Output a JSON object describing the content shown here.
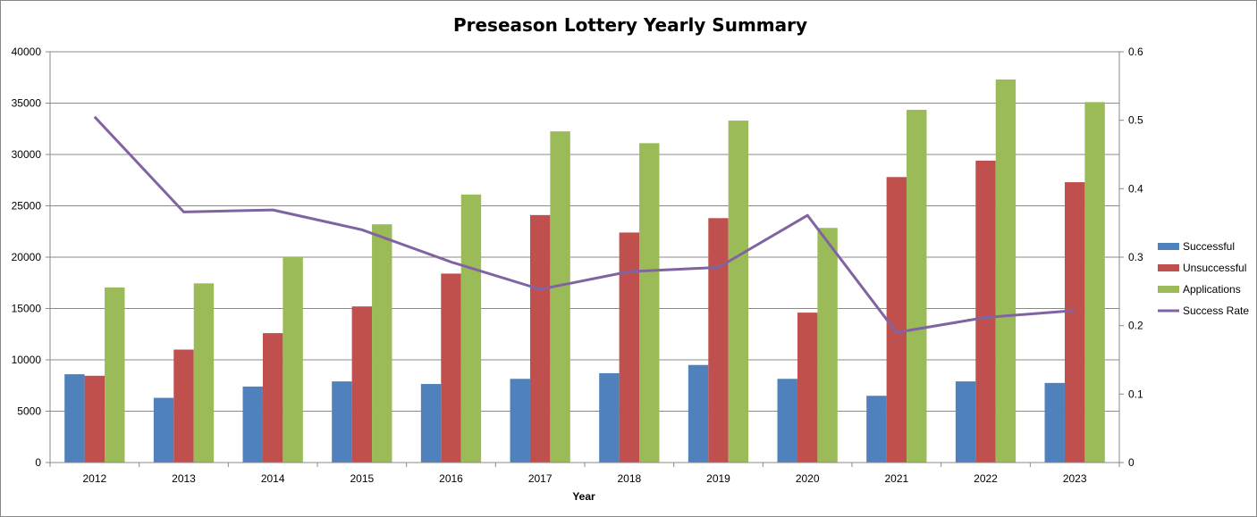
{
  "chart_data": {
    "type": "bar",
    "title": "Preseason Lottery Yearly Summary",
    "xlabel": "Year",
    "ylabel": "",
    "y2label": "",
    "categories": [
      "2012",
      "2013",
      "2014",
      "2015",
      "2016",
      "2017",
      "2018",
      "2019",
      "2020",
      "2021",
      "2022",
      "2023"
    ],
    "ylim": [
      0,
      40000
    ],
    "yticks": [
      "0",
      "5000",
      "10000",
      "15000",
      "20000",
      "25000",
      "30000",
      "35000",
      "40000"
    ],
    "y2lim": [
      0,
      0.6
    ],
    "y2ticks": [
      "0",
      "0.1",
      "0.2",
      "0.3",
      "0.4",
      "0.5",
      "0.6"
    ],
    "grid": true,
    "legend_position": "right",
    "series": [
      {
        "name": "Successful",
        "type": "bar",
        "axis": "left",
        "color": "#4F81BD",
        "values": [
          8600,
          6300,
          7400,
          7900,
          7650,
          8150,
          8700,
          9500,
          8150,
          6500,
          7900,
          7750
        ]
      },
      {
        "name": "Unsuccessful",
        "type": "bar",
        "axis": "left",
        "color": "#C0504D",
        "values": [
          8450,
          11000,
          12600,
          15200,
          18400,
          24100,
          22400,
          23800,
          14600,
          27800,
          29400,
          27300
        ]
      },
      {
        "name": "Applications",
        "type": "bar",
        "axis": "left",
        "color": "#9BBB59",
        "values": [
          17050,
          17450,
          20000,
          23200,
          26100,
          32250,
          31100,
          33300,
          22850,
          34350,
          37300,
          35100
        ]
      },
      {
        "name": "Success Rate",
        "type": "line",
        "axis": "right",
        "color": "#8064A2",
        "values": [
          0.505,
          0.366,
          0.369,
          0.34,
          0.293,
          0.253,
          0.279,
          0.285,
          0.361,
          0.19,
          0.212,
          0.222
        ]
      }
    ]
  }
}
